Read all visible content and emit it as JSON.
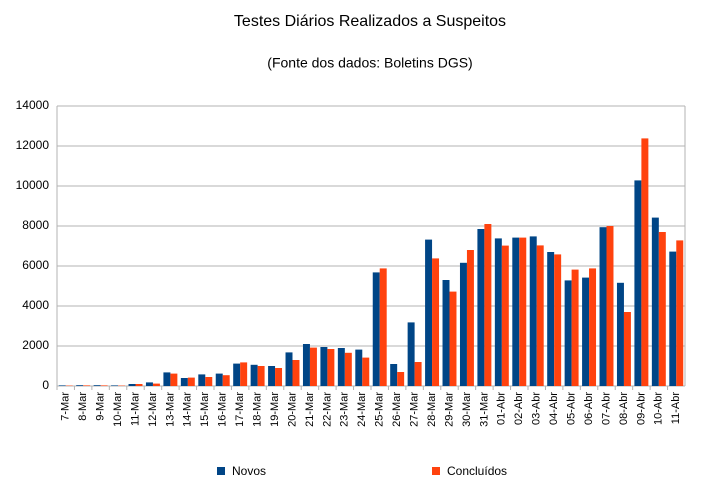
{
  "chart_data": {
    "type": "bar",
    "title": "Testes Diários Realizados a Suspeitos",
    "subtitle": "(Fonte dos dados: Boletins DGS)",
    "categories": [
      "7-Mar",
      "8-Mar",
      "9-Mar",
      "10-Mar",
      "11-Mar",
      "12-Mar",
      "13-Mar",
      "14-Mar",
      "15-Mar",
      "16-Mar",
      "17-Mar",
      "18-Mar",
      "19-Mar",
      "20-Mar",
      "21-Mar",
      "22-Mar",
      "23-Mar",
      "24-Mar",
      "25-Mar",
      "26-Mar",
      "27-Mar",
      "28-Mar",
      "29-Mar",
      "30-Mar",
      "31-Mar",
      "01-Abr",
      "02-Abr",
      "03-Abr",
      "04-Abr",
      "05-Abr",
      "06-Abr",
      "07-Abr",
      "08-Abr",
      "09-Abr",
      "10-Abr",
      "11-Abr"
    ],
    "series": [
      {
        "name": "Novos",
        "color": "#004586",
        "values": [
          30,
          40,
          40,
          30,
          100,
          180,
          680,
          400,
          580,
          620,
          1120,
          1060,
          1000,
          1680,
          2100,
          1950,
          1900,
          1820,
          5680,
          1100,
          3180,
          7320,
          5300,
          6160,
          7850,
          7380,
          7420,
          7480,
          6700,
          5280,
          5420,
          7940,
          5160,
          10280,
          8420,
          6720
        ]
      },
      {
        "name": "Concluídos",
        "color": "#ff420e",
        "values": [
          20,
          30,
          30,
          20,
          100,
          120,
          620,
          420,
          450,
          540,
          1180,
          1000,
          900,
          1300,
          1920,
          1850,
          1660,
          1420,
          5880,
          700,
          1200,
          6380,
          4720,
          6800,
          8100,
          7020,
          7420,
          7030,
          6580,
          5820,
          5880,
          8000,
          3700,
          12380,
          7700,
          7280
        ]
      }
    ],
    "ylim": [
      0,
      14000
    ],
    "yticks": [
      0,
      2000,
      4000,
      6000,
      8000,
      10000,
      12000,
      14000
    ],
    "grid": true,
    "legend": "bottom"
  }
}
